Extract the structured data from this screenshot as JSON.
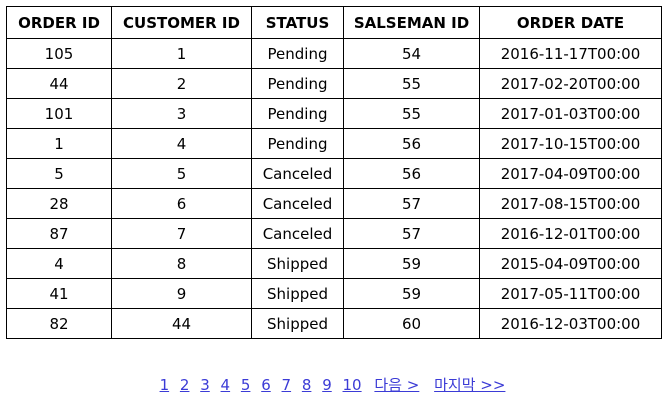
{
  "table": {
    "headers": [
      "ORDER ID",
      "CUSTOMER ID",
      "STATUS",
      "SALSEMAN ID",
      "ORDER DATE"
    ],
    "rows": [
      [
        "105",
        "1",
        "Pending",
        "54",
        "2016-11-17T00:00"
      ],
      [
        "44",
        "2",
        "Pending",
        "55",
        "2017-02-20T00:00"
      ],
      [
        "101",
        "3",
        "Pending",
        "55",
        "2017-01-03T00:00"
      ],
      [
        "1",
        "4",
        "Pending",
        "56",
        "2017-10-15T00:00"
      ],
      [
        "5",
        "5",
        "Canceled",
        "56",
        "2017-04-09T00:00"
      ],
      [
        "28",
        "6",
        "Canceled",
        "57",
        "2017-08-15T00:00"
      ],
      [
        "87",
        "7",
        "Canceled",
        "57",
        "2016-12-01T00:00"
      ],
      [
        "4",
        "8",
        "Shipped",
        "59",
        "2015-04-09T00:00"
      ],
      [
        "41",
        "9",
        "Shipped",
        "59",
        "2017-05-11T00:00"
      ],
      [
        "82",
        "44",
        "Shipped",
        "60",
        "2016-12-03T00:00"
      ]
    ]
  },
  "pagination": {
    "pages": [
      "1",
      "2",
      "3",
      "4",
      "5",
      "6",
      "7",
      "8",
      "9",
      "10"
    ],
    "next_label": "다음 >",
    "last_label": "마지막 >>",
    "link_color": "#3b3bd6"
  }
}
